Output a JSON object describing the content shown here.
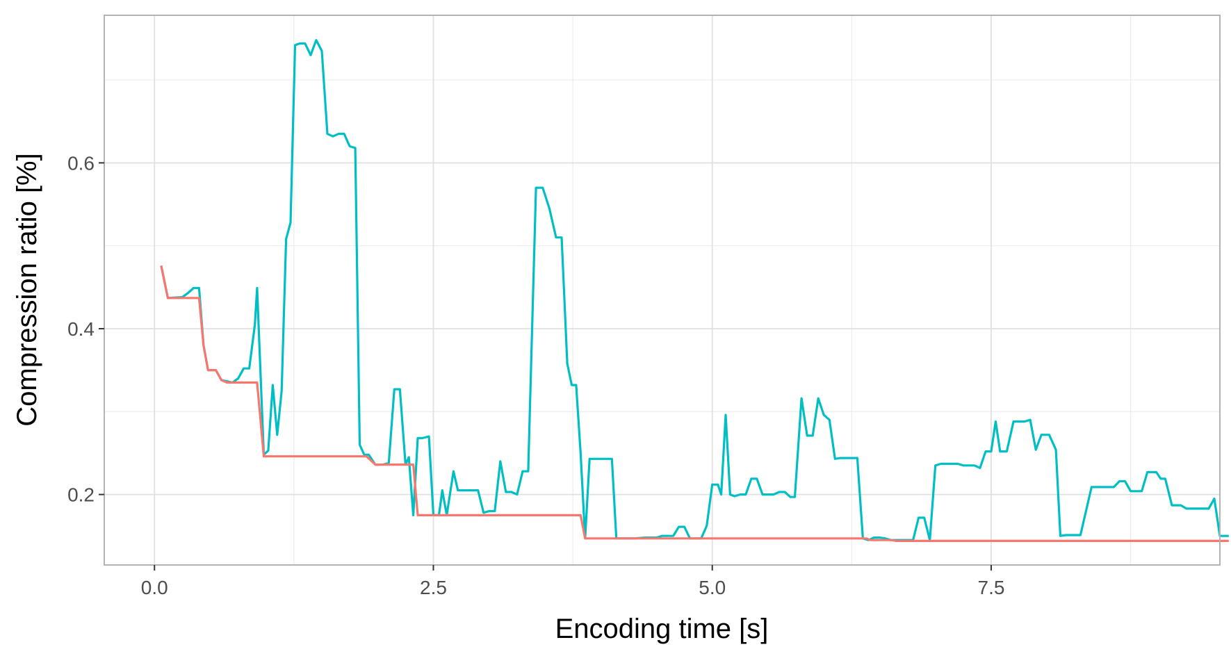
{
  "chart_data": {
    "type": "line",
    "title": "",
    "xlabel": "Encoding time [s]",
    "ylabel": "Compression ratio [%]",
    "xlim": [
      -0.45,
      9.55
    ],
    "ylim": [
      0.115,
      0.778
    ],
    "x_ticks": [
      0.0,
      2.5,
      5.0,
      7.5
    ],
    "x_tick_labels": [
      "0.0",
      "2.5",
      "5.0",
      "7.5"
    ],
    "y_ticks": [
      0.2,
      0.4,
      0.6
    ],
    "y_tick_labels": [
      "0.2",
      "0.4",
      "0.6"
    ],
    "grid": true,
    "legend": "none",
    "colors": {
      "teal": "#00BFC4",
      "salmon": "#F8766D",
      "grid": "#e0e0e0",
      "border": "#b3b3b3"
    },
    "series": [
      {
        "color": "#00BFC4",
        "points": [
          [
            0.06,
            0.476
          ],
          [
            0.12,
            0.437
          ],
          [
            0.25,
            0.438
          ],
          [
            0.3,
            0.443
          ],
          [
            0.35,
            0.449
          ],
          [
            0.4,
            0.449
          ],
          [
            0.44,
            0.38
          ],
          [
            0.48,
            0.35
          ],
          [
            0.55,
            0.35
          ],
          [
            0.6,
            0.338
          ],
          [
            0.7,
            0.335
          ],
          [
            0.75,
            0.34
          ],
          [
            0.8,
            0.352
          ],
          [
            0.85,
            0.352
          ],
          [
            0.9,
            0.405
          ],
          [
            0.92,
            0.449
          ],
          [
            0.98,
            0.248
          ],
          [
            1.02,
            0.253
          ],
          [
            1.06,
            0.332
          ],
          [
            1.1,
            0.272
          ],
          [
            1.14,
            0.325
          ],
          [
            1.18,
            0.508
          ],
          [
            1.22,
            0.528
          ],
          [
            1.26,
            0.742
          ],
          [
            1.3,
            0.744
          ],
          [
            1.35,
            0.744
          ],
          [
            1.4,
            0.73
          ],
          [
            1.45,
            0.748
          ],
          [
            1.5,
            0.735
          ],
          [
            1.55,
            0.635
          ],
          [
            1.6,
            0.632
          ],
          [
            1.65,
            0.635
          ],
          [
            1.7,
            0.635
          ],
          [
            1.75,
            0.62
          ],
          [
            1.8,
            0.618
          ],
          [
            1.84,
            0.26
          ],
          [
            1.88,
            0.248
          ],
          [
            1.92,
            0.248
          ],
          [
            1.98,
            0.236
          ],
          [
            2.05,
            0.236
          ],
          [
            2.1,
            0.238
          ],
          [
            2.15,
            0.327
          ],
          [
            2.2,
            0.327
          ],
          [
            2.25,
            0.236
          ],
          [
            2.28,
            0.245
          ],
          [
            2.32,
            0.175
          ],
          [
            2.36,
            0.268
          ],
          [
            2.4,
            0.268
          ],
          [
            2.46,
            0.27
          ],
          [
            2.5,
            0.175
          ],
          [
            2.55,
            0.175
          ],
          [
            2.58,
            0.205
          ],
          [
            2.62,
            0.175
          ],
          [
            2.68,
            0.228
          ],
          [
            2.72,
            0.205
          ],
          [
            2.78,
            0.205
          ],
          [
            2.9,
            0.205
          ],
          [
            2.95,
            0.178
          ],
          [
            3.0,
            0.18
          ],
          [
            3.05,
            0.18
          ],
          [
            3.1,
            0.24
          ],
          [
            3.15,
            0.203
          ],
          [
            3.2,
            0.203
          ],
          [
            3.25,
            0.2
          ],
          [
            3.3,
            0.228
          ],
          [
            3.35,
            0.228
          ],
          [
            3.42,
            0.57
          ],
          [
            3.48,
            0.57
          ],
          [
            3.54,
            0.545
          ],
          [
            3.6,
            0.51
          ],
          [
            3.65,
            0.51
          ],
          [
            3.7,
            0.358
          ],
          [
            3.74,
            0.332
          ],
          [
            3.78,
            0.332
          ],
          [
            3.82,
            0.25
          ],
          [
            3.86,
            0.147
          ],
          [
            3.9,
            0.243
          ],
          [
            3.96,
            0.243
          ],
          [
            4.1,
            0.243
          ],
          [
            4.14,
            0.147
          ],
          [
            4.3,
            0.147
          ],
          [
            4.4,
            0.148
          ],
          [
            4.5,
            0.148
          ],
          [
            4.55,
            0.15
          ],
          [
            4.65,
            0.15
          ],
          [
            4.7,
            0.161
          ],
          [
            4.75,
            0.161
          ],
          [
            4.8,
            0.147
          ],
          [
            4.9,
            0.147
          ],
          [
            4.95,
            0.162
          ],
          [
            5.0,
            0.212
          ],
          [
            5.05,
            0.212
          ],
          [
            5.08,
            0.2
          ],
          [
            5.12,
            0.296
          ],
          [
            5.16,
            0.2
          ],
          [
            5.2,
            0.198
          ],
          [
            5.25,
            0.2
          ],
          [
            5.3,
            0.2
          ],
          [
            5.35,
            0.219
          ],
          [
            5.4,
            0.219
          ],
          [
            5.45,
            0.2
          ],
          [
            5.55,
            0.2
          ],
          [
            5.6,
            0.203
          ],
          [
            5.65,
            0.203
          ],
          [
            5.7,
            0.197
          ],
          [
            5.74,
            0.197
          ],
          [
            5.8,
            0.316
          ],
          [
            5.85,
            0.271
          ],
          [
            5.9,
            0.271
          ],
          [
            5.95,
            0.316
          ],
          [
            6.0,
            0.296
          ],
          [
            6.05,
            0.29
          ],
          [
            6.1,
            0.243
          ],
          [
            6.15,
            0.244
          ],
          [
            6.3,
            0.244
          ],
          [
            6.35,
            0.147
          ],
          [
            6.4,
            0.145
          ],
          [
            6.45,
            0.148
          ],
          [
            6.5,
            0.148
          ],
          [
            6.55,
            0.147
          ],
          [
            6.6,
            0.145
          ],
          [
            6.7,
            0.145
          ],
          [
            6.8,
            0.145
          ],
          [
            6.85,
            0.172
          ],
          [
            6.9,
            0.172
          ],
          [
            6.95,
            0.145
          ],
          [
            7.0,
            0.235
          ],
          [
            7.05,
            0.237
          ],
          [
            7.2,
            0.237
          ],
          [
            7.25,
            0.235
          ],
          [
            7.35,
            0.235
          ],
          [
            7.4,
            0.232
          ],
          [
            7.45,
            0.252
          ],
          [
            7.5,
            0.252
          ],
          [
            7.54,
            0.288
          ],
          [
            7.58,
            0.252
          ],
          [
            7.64,
            0.252
          ],
          [
            7.7,
            0.288
          ],
          [
            7.8,
            0.288
          ],
          [
            7.85,
            0.29
          ],
          [
            7.9,
            0.254
          ],
          [
            7.95,
            0.272
          ],
          [
            8.02,
            0.272
          ],
          [
            8.08,
            0.254
          ],
          [
            8.12,
            0.15
          ],
          [
            8.17,
            0.151
          ],
          [
            8.3,
            0.151
          ],
          [
            8.4,
            0.209
          ],
          [
            8.5,
            0.209
          ],
          [
            8.6,
            0.209
          ],
          [
            8.65,
            0.216
          ],
          [
            8.7,
            0.216
          ],
          [
            8.75,
            0.204
          ],
          [
            8.85,
            0.204
          ],
          [
            8.9,
            0.227
          ],
          [
            8.98,
            0.227
          ],
          [
            9.02,
            0.219
          ],
          [
            9.06,
            0.219
          ],
          [
            9.12,
            0.187
          ],
          [
            9.2,
            0.187
          ],
          [
            9.25,
            0.183
          ],
          [
            9.4,
            0.183
          ],
          [
            9.45,
            0.183
          ],
          [
            9.5,
            0.195
          ],
          [
            9.55,
            0.15
          ],
          [
            9.63,
            0.15
          ]
        ]
      },
      {
        "color": "#F8766D",
        "points": [
          [
            0.06,
            0.476
          ],
          [
            0.12,
            0.437
          ],
          [
            0.4,
            0.437
          ],
          [
            0.44,
            0.38
          ],
          [
            0.48,
            0.35
          ],
          [
            0.55,
            0.35
          ],
          [
            0.6,
            0.338
          ],
          [
            0.65,
            0.335
          ],
          [
            0.92,
            0.335
          ],
          [
            0.98,
            0.246
          ],
          [
            1.84,
            0.246
          ],
          [
            1.9,
            0.246
          ],
          [
            1.98,
            0.236
          ],
          [
            2.32,
            0.236
          ],
          [
            2.36,
            0.175
          ],
          [
            3.82,
            0.175
          ],
          [
            3.86,
            0.147
          ],
          [
            6.38,
            0.147
          ],
          [
            6.42,
            0.145
          ],
          [
            6.6,
            0.145
          ],
          [
            6.65,
            0.144
          ],
          [
            9.63,
            0.144
          ]
        ]
      }
    ]
  }
}
